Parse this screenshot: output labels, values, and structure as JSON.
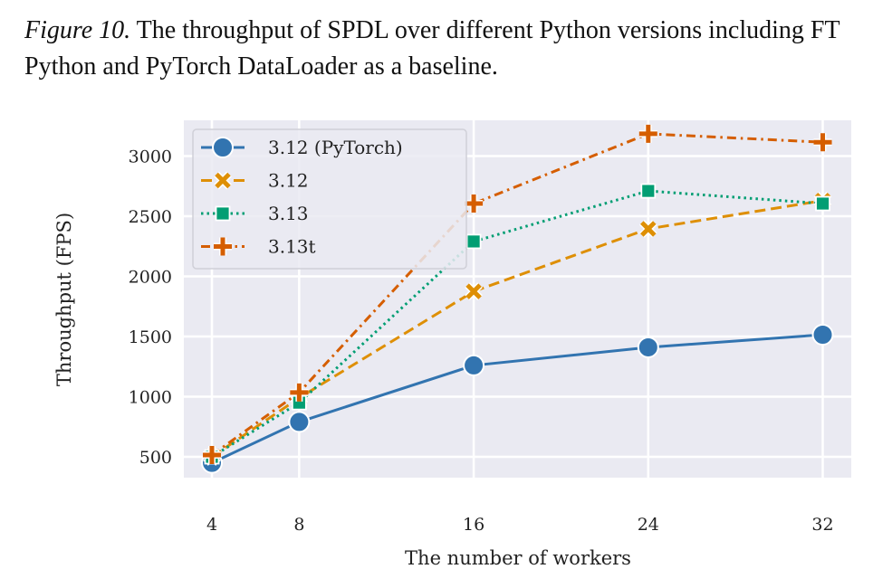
{
  "caption": {
    "label": "Figure 10.",
    "text": " The throughput of SPDL over different Python versions including FT Python and PyTorch DataLoader as a baseline."
  },
  "chart_data": {
    "type": "line",
    "title": "",
    "xlabel": "The number of workers",
    "ylabel": "Throughput (FPS)",
    "x": [
      4,
      8,
      16,
      24,
      32
    ],
    "xticks": [
      "4",
      "8",
      "16",
      "24",
      "32"
    ],
    "yticks": [
      "500",
      "1000",
      "1500",
      "2000",
      "2500",
      "3000"
    ],
    "ytick_values": [
      500,
      1000,
      1500,
      2000,
      2500,
      3000
    ],
    "xlim": [
      2.8,
      33.3
    ],
    "ylim": [
      300,
      3480
    ],
    "grid": true,
    "background": "#eaeaf2",
    "legend_position": "top-left",
    "series": [
      {
        "name": "3.12 (PyTorch)",
        "values": [
          450,
          790,
          1260,
          1410,
          1515
        ],
        "color": "#3274b0",
        "marker": "circle",
        "dash": "solid"
      },
      {
        "name": "3.12",
        "values": [
          500,
          990,
          1875,
          2395,
          2630
        ],
        "color": "#de8f05",
        "marker": "x",
        "dash": "dashed"
      },
      {
        "name": "3.13",
        "values": [
          500,
          950,
          2290,
          2710,
          2605
        ],
        "color": "#029e73",
        "marker": "square",
        "dash": "dotted"
      },
      {
        "name": "3.13t",
        "values": [
          515,
          1035,
          2605,
          3185,
          3115
        ],
        "color": "#d55e00",
        "marker": "plus",
        "dash": "dashdot"
      }
    ]
  }
}
